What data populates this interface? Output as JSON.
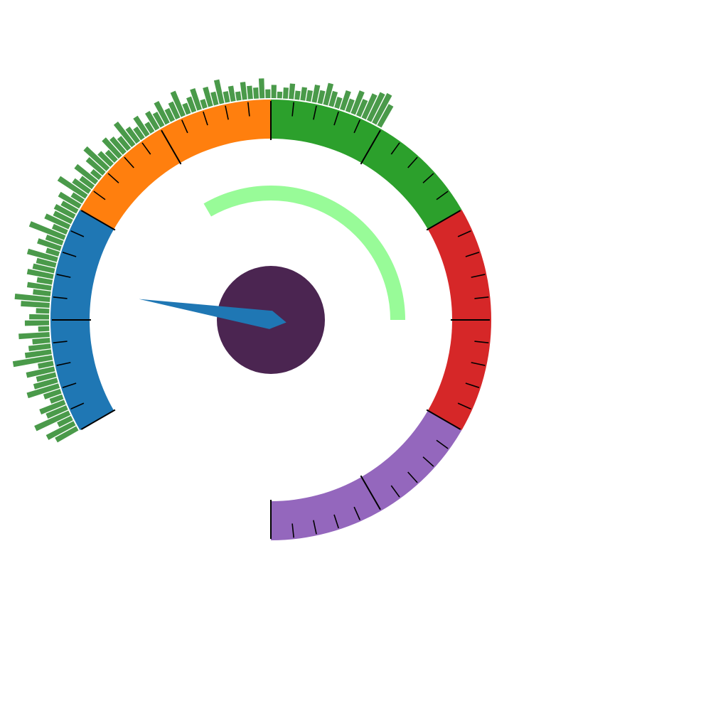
{
  "chart_data": {
    "type": "gauge",
    "title": "",
    "value_min": 0,
    "value_max": 100,
    "needle_value": 13,
    "needle_color": "#1f77b4",
    "hub_color": "#4b2551",
    "highlight_band": {
      "from": 30,
      "to": 70,
      "color": "#98fb98"
    },
    "segments": [
      {
        "from": 0,
        "to": 20,
        "color": "#1f77b4"
      },
      {
        "from": 20,
        "to": 40,
        "color": "#ff7f0e"
      },
      {
        "from": 40,
        "to": 60,
        "color": "#2ca02c"
      },
      {
        "from": 60,
        "to": 80,
        "color": "#d62728"
      },
      {
        "from": 80,
        "to": 100,
        "color": "#9467bd"
      }
    ],
    "major_tick_step": 10,
    "minor_tick_step": 2,
    "histogram": {
      "color": "#4a9a4a",
      "values": [
        0.55,
        0.7,
        0.35,
        0.85,
        0.5,
        0.6,
        0.3,
        0.4,
        0.75,
        0.55,
        0.45,
        0.65,
        0.35,
        0.9,
        0.6,
        0.5,
        0.4,
        0.7,
        0.25,
        0.55,
        0.45,
        0.3,
        0.65,
        0.8,
        0.4,
        0.55,
        0.35,
        0.6,
        0.5,
        0.45,
        0.7,
        0.3,
        0.55,
        0.4,
        0.85,
        0.35,
        0.6,
        0.45,
        0.5,
        0.4,
        0.55,
        0.3,
        0.75,
        0.45,
        0.35,
        0.6,
        0.25,
        0.5,
        0.7,
        0.4,
        0.3,
        0.55,
        0.45,
        0.35,
        0.65,
        0.4,
        0.3,
        0.5,
        0.25,
        0.45,
        0.35,
        0.55,
        0.3,
        0.4,
        0.6,
        0.25,
        0.35,
        0.5,
        0.2,
        0.45,
        0.3,
        0.55,
        0.25,
        0.35,
        0.2,
        0.4,
        0.3,
        0.25,
        0.45,
        0.2,
        0.3,
        0.15,
        0.25,
        0.35,
        0.2,
        0.3,
        0.25,
        0.4,
        0.3,
        0.5,
        0.35,
        0.25,
        0.45,
        0.3,
        0.55,
        0.4,
        0.6,
        0.7,
        0.75,
        0.55
      ]
    }
  }
}
